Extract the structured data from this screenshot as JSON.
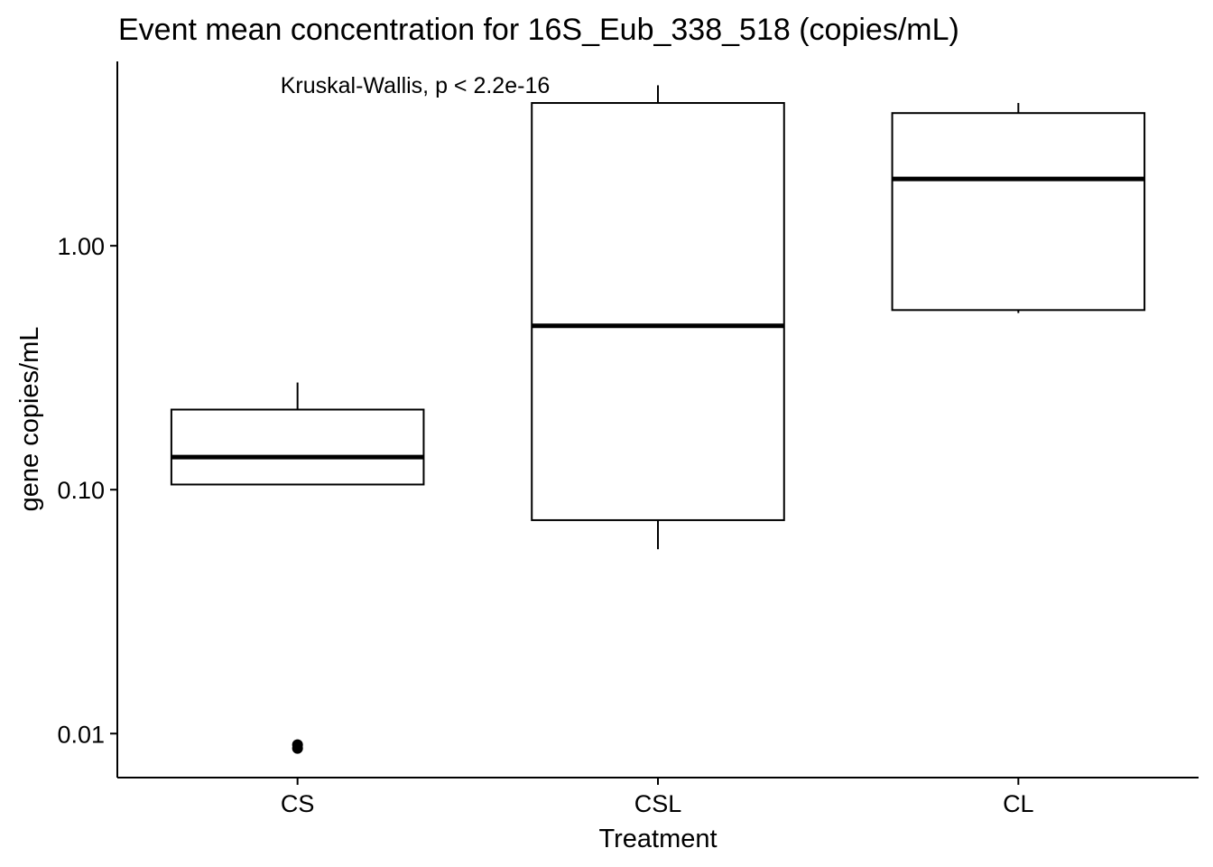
{
  "chart_data": {
    "type": "boxplot",
    "title": "Event mean concentration for 16S_Eub_338_518 (copies/mL)",
    "xlabel": "Treatment",
    "ylabel": "gene copies/mL",
    "yscale": "log10",
    "ylim": [
      0.0066,
      5.7
    ],
    "yticks": [
      {
        "value": 0.01,
        "label": "0.01"
      },
      {
        "value": 0.1,
        "label": "0.10"
      },
      {
        "value": 1.0,
        "label": "1.00"
      }
    ],
    "categories": [
      "CS",
      "CSL",
      "CL"
    ],
    "boxes": [
      {
        "category": "CS",
        "whisker_low": 0.105,
        "q1": 0.105,
        "median": 0.136,
        "q3": 0.213,
        "whisker_high": 0.275,
        "outliers": [
          0.0087,
          0.009
        ]
      },
      {
        "category": "CSL",
        "whisker_low": 0.057,
        "q1": 0.075,
        "median": 0.47,
        "q3": 3.85,
        "whisker_high": 4.55,
        "outliers": []
      },
      {
        "category": "CL",
        "whisker_low": 0.53,
        "q1": 0.545,
        "median": 1.88,
        "q3": 3.5,
        "whisker_high": 3.85,
        "outliers": []
      }
    ],
    "annotation": "Kruskal-Wallis, p < 2.2e-16",
    "grid": false,
    "legend": "none",
    "colors": {
      "box_fill": "#ffffff",
      "line": "#000000"
    }
  }
}
